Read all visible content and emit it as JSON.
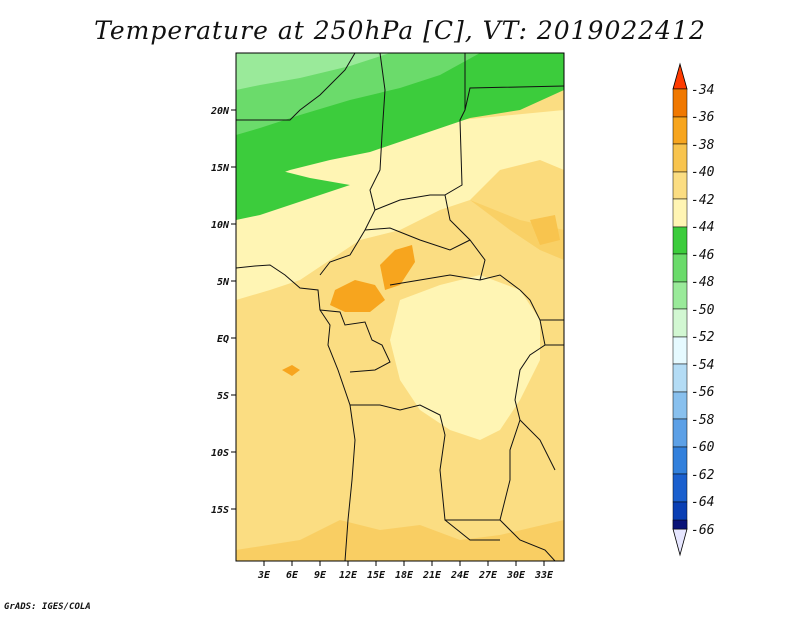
{
  "title": "Temperature at 250hPa [C], VT: 2019022412",
  "credit": "GrADS: IGES/COLA",
  "lat_labels": [
    "20N",
    "15N",
    "10N",
    "5N",
    "EQ",
    "5S",
    "10S",
    "15S"
  ],
  "lon_labels": [
    "3E",
    "6E",
    "9E",
    "12E",
    "15E",
    "18E",
    "21E",
    "24E",
    "27E",
    "30E",
    "33E"
  ],
  "colorbar": {
    "levels": [
      "-34",
      "-36",
      "-38",
      "-40",
      "-42",
      "-44",
      "-46",
      "-48",
      "-50",
      "-52",
      "-54",
      "-56",
      "-58",
      "-60",
      "-62",
      "-64",
      "-66"
    ],
    "colors_top_to_bottom": [
      "#ff3b00",
      "#f07800",
      "#f7a51e",
      "#f8c44e",
      "#fbdd82",
      "#fff5b4",
      "#3ccc3c",
      "#6bdb6b",
      "#9aea9a",
      "#d2f7d2",
      "#e6faff",
      "#b4dcf5",
      "#88c0ee",
      "#5ca0e6",
      "#3280dc",
      "#1a5fce",
      "#0a3fb4",
      "#0a1478",
      "#e6e6ff"
    ]
  }
}
